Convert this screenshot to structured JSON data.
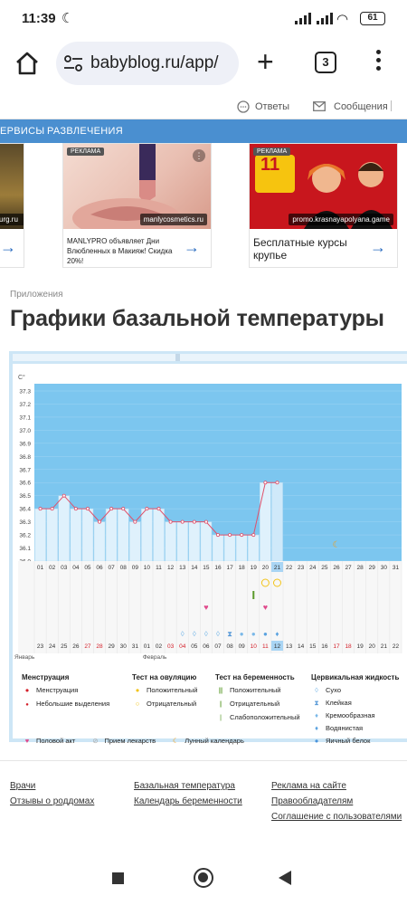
{
  "status": {
    "time": "11:39",
    "battery": "61"
  },
  "browser": {
    "url": "babyblog.ru/app/",
    "tab_count": "3"
  },
  "topline": {
    "answers": "Ответы",
    "messages": "Сообщения"
  },
  "nav": {
    "services": "ЕРВИСЫ",
    "entertainment": "РАЗВЛЕЧЕНИЯ"
  },
  "ads": [
    {
      "source": "urg.ru"
    },
    {
      "label": "РЕКЛАМА",
      "source": "manlycosmetics.ru",
      "text": "MANLYPRO объявляет Дни Влюбленных в Макияж! Скидка 20%!"
    },
    {
      "label": "РЕКЛАМА",
      "source": "promo.krasnayapolyana.game",
      "text": "Бесплатные курсы крупье",
      "badge": "11"
    }
  ],
  "breadcrumb": "Приложения",
  "page_title": "Графики базальной температуры",
  "chart_data": {
    "type": "bar",
    "y_unit": "C°",
    "ylim": [
      36.0,
      37.3
    ],
    "y_ticks": [
      "37.3",
      "37.2",
      "37.1",
      "37.0",
      "36.9",
      "36.8",
      "36.7",
      "36.6",
      "36.5",
      "36.4",
      "36.3",
      "36.2",
      "36.1",
      "36.0"
    ],
    "cycle_days": [
      "01",
      "02",
      "03",
      "04",
      "05",
      "06",
      "07",
      "08",
      "09",
      "10",
      "11",
      "12",
      "13",
      "14",
      "15",
      "16",
      "17",
      "18",
      "19",
      "20",
      "21",
      "22",
      "23",
      "24",
      "25",
      "26",
      "27",
      "28",
      "29",
      "30",
      "31"
    ],
    "values": [
      36.4,
      36.4,
      36.5,
      36.4,
      36.4,
      36.3,
      36.4,
      36.4,
      36.3,
      36.4,
      36.4,
      36.3,
      36.3,
      36.3,
      36.3,
      36.2,
      36.2,
      36.2,
      36.2,
      36.6,
      36.6
    ],
    "highlight_day": "21",
    "calendar_days": [
      "23",
      "24",
      "25",
      "26",
      "27",
      "28",
      "29",
      "30",
      "31",
      "01",
      "02",
      "03",
      "04",
      "05",
      "06",
      "07",
      "08",
      "09",
      "10",
      "11",
      "12",
      "13",
      "14",
      "15",
      "16",
      "17",
      "18",
      "19",
      "20",
      "21",
      "22"
    ],
    "calendar_red_days": [
      "27",
      "28",
      "03",
      "04",
      "10",
      "11",
      "17",
      "18"
    ],
    "calendar_highlight": "12",
    "month_labels": [
      "Январь",
      "Февраль"
    ]
  },
  "legend": {
    "menstruation": {
      "title": "Менструация",
      "items": [
        "Менструация",
        "Небольшие выделения"
      ]
    },
    "ovulation": {
      "title": "Тест на овуляцию",
      "items": [
        "Положительный",
        "Отрицательный"
      ]
    },
    "pregnancy": {
      "title": "Тест на беременность",
      "items": [
        "Положительный",
        "Отрицательный",
        "Слабоположительный"
      ]
    },
    "cervical": {
      "title": "Цервикальная жидкость",
      "items": [
        "Сухо",
        "Клейкая",
        "Кремообразная",
        "Водянистая",
        "Яичный белок"
      ]
    },
    "bottom": [
      "Половой акт",
      "Прием лекарств",
      "Лунный календарь"
    ]
  },
  "footer": {
    "col1": [
      "Врачи",
      "Отзывы о роддомах"
    ],
    "col2": [
      "Базальная температура",
      "Календарь беременности"
    ],
    "col3": [
      "Реклама на сайте",
      "Правообладателям",
      "Соглашение с пользователями"
    ]
  },
  "colors": {
    "nav_blue": "#4a8fd0",
    "chart_bg": "#7cc6ef",
    "bar_fill": "#dff1fc",
    "line": "#e0506a",
    "heart": "#e04a8c",
    "drop_blue": "#7ab8e8"
  }
}
